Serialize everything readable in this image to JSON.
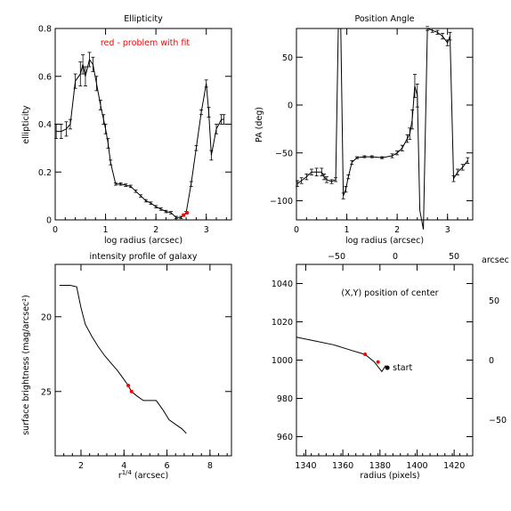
{
  "colors": {
    "ink": "#000000",
    "highlight": "#ff0000"
  },
  "chart_data": [
    {
      "type": "line",
      "title": "Ellipticity",
      "xlabel": "log radius (arcsec)",
      "ylabel": "ellipticity",
      "xlim": [
        0,
        3.5
      ],
      "ylim": [
        0,
        0.8
      ],
      "xticks": [
        0,
        1,
        2,
        3
      ],
      "yticks": [
        0,
        0.2,
        0.4,
        0.6,
        0.8
      ],
      "xtick_labels": [
        "0",
        "1",
        "2",
        "3"
      ],
      "ytick_labels": [
        "0",
        "0.2",
        "0.4",
        "0.6",
        "0.8"
      ],
      "annotation": "red - problem with fit",
      "series": [
        {
          "x": [
            0.02,
            0.12,
            0.22,
            0.3,
            0.4,
            0.5,
            0.55,
            0.6,
            0.68,
            0.75,
            0.82,
            0.9,
            0.96,
            1.0,
            1.05,
            1.1,
            1.2,
            1.3,
            1.4,
            1.5,
            1.6,
            1.7,
            1.8,
            1.9,
            2.0,
            2.1,
            2.2,
            2.3,
            2.4,
            2.5,
            2.55,
            2.6,
            2.7,
            2.8,
            2.9,
            3.0,
            3.05,
            3.1,
            3.2,
            3.3,
            3.35
          ],
          "y": [
            0.37,
            0.37,
            0.38,
            0.4,
            0.58,
            0.61,
            0.65,
            0.6,
            0.67,
            0.65,
            0.57,
            0.48,
            0.42,
            0.38,
            0.32,
            0.24,
            0.15,
            0.15,
            0.145,
            0.14,
            0.12,
            0.1,
            0.08,
            0.07,
            0.055,
            0.045,
            0.035,
            0.03,
            0.01,
            0.01,
            0.02,
            0.03,
            0.15,
            0.3,
            0.45,
            0.57,
            0.45,
            0.27,
            0.38,
            0.42,
            0.42
          ],
          "err": [
            0.03,
            0.03,
            0.03,
            0.02,
            0.03,
            0.05,
            0.04,
            0.04,
            0.03,
            0.03,
            0.03,
            0.02,
            0.02,
            0.02,
            0.02,
            0.01,
            0.005,
            0.005,
            0.005,
            0.005,
            0.005,
            0.005,
            0.005,
            0.005,
            0.005,
            0.005,
            0.005,
            0.005,
            0.005,
            0.005,
            0.005,
            0.005,
            0.01,
            0.01,
            0.01,
            0.015,
            0.02,
            0.02,
            0.02,
            0.02,
            0.02
          ]
        }
      ],
      "highlight_points": [
        {
          "x": 2.55,
          "y": 0.02
        },
        {
          "x": 2.62,
          "y": 0.03
        }
      ]
    },
    {
      "type": "line",
      "title": "Position Angle",
      "xlabel": "log radius (arcsec)",
      "ylabel": "PA (deg)",
      "xlim": [
        0,
        3.5
      ],
      "ylim": [
        -120,
        80
      ],
      "xticks": [
        0,
        1,
        2,
        3
      ],
      "yticks": [
        -100,
        -50,
        0,
        50
      ],
      "xtick_labels": [
        "0",
        "1",
        "2",
        "3"
      ],
      "ytick_labels": [
        "−100",
        "−50",
        "0",
        "50"
      ],
      "series": [
        {
          "x": [
            0.02,
            0.1,
            0.2,
            0.3,
            0.4,
            0.5,
            0.55,
            0.6,
            0.7,
            0.78,
            0.83,
            0.88,
            0.93,
            0.98,
            1.03,
            1.1,
            1.2,
            1.35,
            1.5,
            1.7,
            1.9,
            2.0,
            2.1,
            2.2,
            2.25,
            2.3,
            2.35,
            2.4,
            2.45,
            2.52,
            2.6,
            2.7,
            2.8,
            2.9,
            3.0,
            3.05,
            3.12,
            3.2,
            3.3,
            3.4
          ],
          "y": [
            -82,
            -79,
            -75,
            -70,
            -70,
            -70,
            -75,
            -78,
            -80,
            -78,
            80,
            80,
            -95,
            -88,
            -75,
            -60,
            -55,
            -54,
            -54,
            -55,
            -53,
            -50,
            -45,
            -35,
            -30,
            -15,
            20,
            10,
            -110,
            -130,
            80,
            78,
            76,
            72,
            65,
            72,
            -77,
            -70,
            -65,
            -58
          ],
          "err": [
            3,
            3,
            3,
            3,
            4,
            4,
            3,
            3,
            2,
            2,
            0,
            0,
            3,
            3,
            2,
            2,
            1,
            1,
            1,
            1,
            2,
            2,
            3,
            4,
            6,
            10,
            12,
            12,
            0,
            0,
            2,
            2,
            2,
            3,
            3,
            4,
            3,
            3,
            3,
            3
          ]
        }
      ]
    },
    {
      "type": "line",
      "title": "intensity profile of galaxy",
      "xlabel": "r^1/4 (arcsec)",
      "ylabel": "surface brightness (mag/arcsec^2)",
      "ylabel_display": "surface brightness (mag/arcsec²)",
      "xlim": [
        0.8,
        9
      ],
      "ylim": [
        29.3,
        16.5
      ],
      "xticks": [
        2,
        4,
        6,
        8
      ],
      "yticks": [
        20,
        25
      ],
      "xtick_labels": [
        "2",
        "4",
        "6",
        "8"
      ],
      "ytick_labels": [
        "20",
        "25"
      ],
      "series": [
        {
          "x": [
            1.0,
            1.2,
            1.5,
            1.8,
            2.0,
            2.2,
            2.5,
            2.8,
            3.1,
            3.4,
            3.7,
            4.0,
            4.2,
            4.35,
            4.6,
            4.9,
            5.2,
            5.5,
            5.8,
            6.1,
            6.4,
            6.7,
            6.9
          ],
          "y": [
            17.9,
            17.9,
            17.9,
            18.0,
            19.4,
            20.5,
            21.3,
            22.0,
            22.6,
            23.1,
            23.6,
            24.2,
            24.6,
            25.0,
            25.3,
            25.6,
            25.6,
            25.6,
            26.2,
            26.9,
            27.2,
            27.5,
            27.8
          ]
        }
      ],
      "highlight_points": [
        {
          "x": 4.2,
          "y": 24.6
        },
        {
          "x": 4.35,
          "y": 25.0
        }
      ]
    },
    {
      "type": "line",
      "title": "",
      "annotation": "(X,Y) position of center",
      "start_label": "start",
      "xlabel": "radius (pixels)",
      "ylabel": "",
      "top_axis_unit": "arcsec",
      "xlim": [
        1335,
        1430
      ],
      "ylim": [
        950,
        1050
      ],
      "xticks": [
        1340,
        1360,
        1380,
        1400,
        1420
      ],
      "yticks": [
        960,
        980,
        1000,
        1020,
        1040
      ],
      "xtick_labels": [
        "1340",
        "1360",
        "1380",
        "1400",
        "1420"
      ],
      "ytick_labels": [
        "960",
        "980",
        "1000",
        "1020",
        "1040"
      ],
      "top_xticks": [
        -50,
        0,
        50
      ],
      "top_xtick_labels": [
        "−50",
        "0",
        "50"
      ],
      "right_yticks": [
        -50,
        0,
        50
      ],
      "right_ytick_labels": [
        "−50",
        "0",
        "50"
      ],
      "series": [
        {
          "x": [
            1335,
            1345,
            1355,
            1365,
            1372,
            1377,
            1381,
            1383,
            1384
          ],
          "y": [
            1012,
            1010,
            1008,
            1005,
            1003,
            999,
            994,
            997,
            996
          ]
        }
      ],
      "highlight_points": [
        {
          "x": 1372,
          "y": 1003
        },
        {
          "x": 1379,
          "y": 999
        }
      ],
      "start_point": {
        "x": 1384,
        "y": 996
      }
    }
  ]
}
